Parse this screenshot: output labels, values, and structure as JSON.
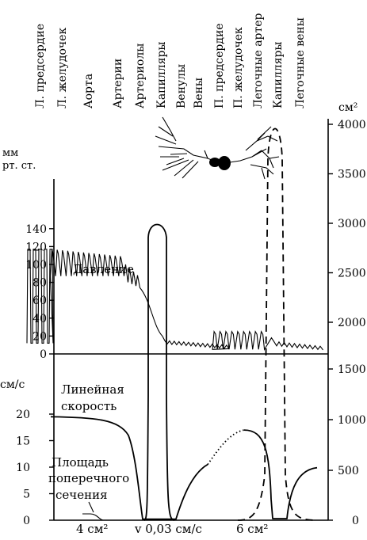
{
  "chart_data": {
    "type": "line",
    "segments": [
      "Л. предсердие",
      "Л. желудочек",
      "Аорта",
      "Артерии",
      "Артериолы",
      "Капилляры",
      "Венулы",
      "Вены",
      "П. предсердие",
      "П. желудочек",
      "Легочные артер",
      "Капилляры",
      "Легочные вены"
    ],
    "left_top_axis": {
      "unit_line1": "мм",
      "unit_line2": "рт. ст.",
      "ticks": [
        "140",
        "120",
        "100",
        "80",
        "60",
        "40",
        "20",
        "0"
      ],
      "ylim": [
        0,
        140
      ]
    },
    "left_bottom_axis": {
      "unit": "см/с",
      "ticks": [
        "20",
        "15",
        "10",
        "5",
        "0"
      ],
      "ylim": [
        0,
        20
      ]
    },
    "right_axis_top": {
      "unit": "см²",
      "ticks": [
        "4000",
        "3500",
        "3000",
        "2500",
        "2000"
      ]
    },
    "right_axis_bottom": {
      "ticks": [
        "1500",
        "1000",
        "500",
        "0"
      ]
    },
    "series": [
      {
        "name": "Давление",
        "unit": "мм рт. ст."
      },
      {
        "name": "Линейная скорость",
        "unit": "см/с"
      },
      {
        "name": "Площадь поперечного сечения",
        "unit": "см²"
      }
    ],
    "labels": {
      "pressure": "Давление",
      "velocity_1": "Линейная",
      "velocity_2": "скорость",
      "area_1": "Площадь",
      "area_2": "поперечного",
      "area_3": "сечения"
    },
    "annotations": [
      "4 см²",
      "v 0,03 см/с",
      "6 см²"
    ],
    "pressure_waves": [
      {
        "from": 0.0,
        "to": 0.09,
        "min": 12,
        "max": 117
      },
      {
        "from": 0.09,
        "to": 0.34,
        "min": 87,
        "max": 117
      },
      {
        "from": 0.34,
        "to": 0.4,
        "min": 80,
        "max": 100
      },
      {
        "from": 0.64,
        "to": 0.82,
        "min": 5,
        "max": 25
      }
    ],
    "velocity_peak": 19.5,
    "area_peak_systemic": 3000,
    "area_peak_pulmonary": 4000,
    "grid": false,
    "legend": "none"
  }
}
